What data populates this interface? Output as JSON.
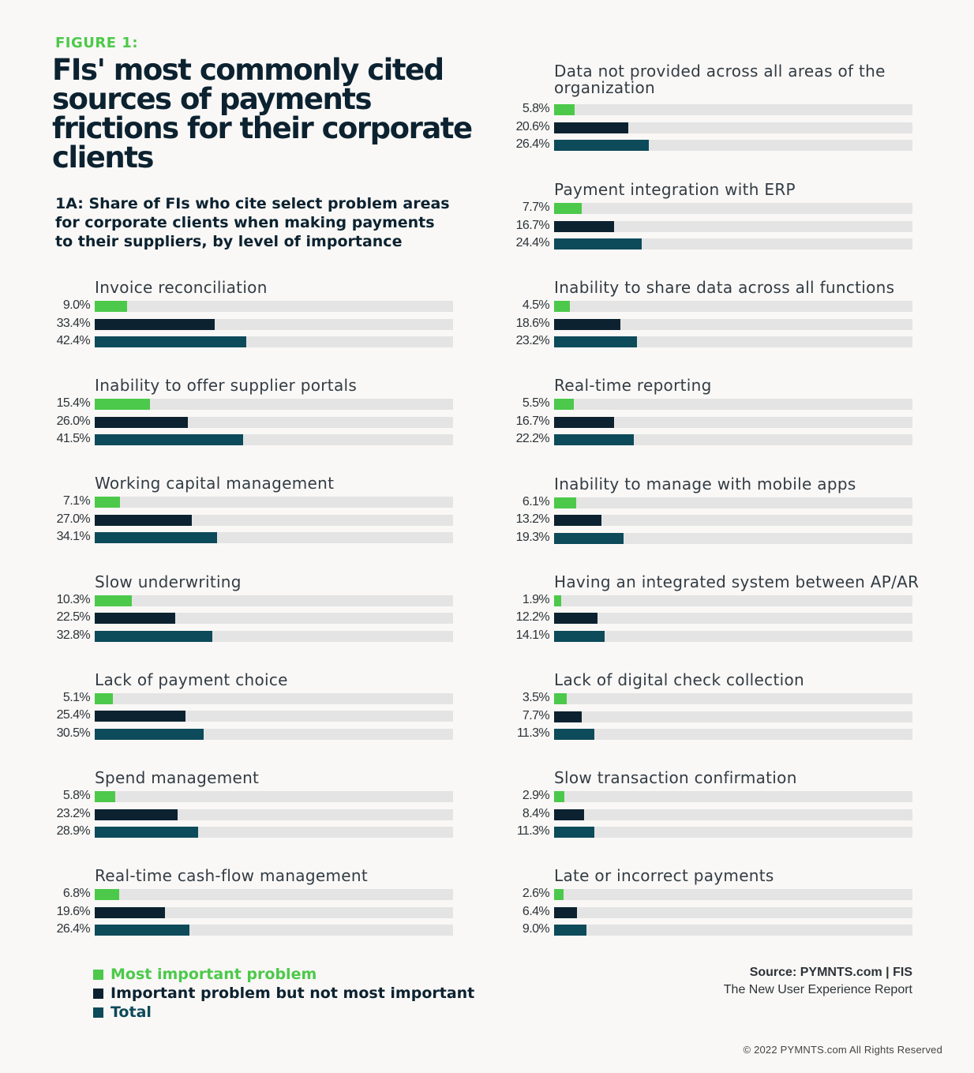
{
  "figure_label": "FIGURE 1:",
  "title": "FIs' most commonly cited sources of payments frictions for their corporate clients",
  "subtitle": "1A: Share of FIs who cite select problem areas for corporate clients when making payments to their suppliers, by level of importance",
  "colors": {
    "most_important": "#4cc94a",
    "important": "#0c2230",
    "total": "#0d4a5a",
    "track": "#e4e4e4"
  },
  "chart_data": {
    "type": "bar",
    "orientation": "horizontal",
    "xlim": [
      0,
      100
    ],
    "series": [
      {
        "name": "Most important problem",
        "color": "#4cc94a"
      },
      {
        "name": "Important problem but not most important",
        "color": "#0c2230"
      },
      {
        "name": "Total",
        "color": "#0d4a5a"
      }
    ],
    "categories": [
      {
        "label": "Invoice reconciliation",
        "values": [
          9.0,
          33.4,
          42.4
        ],
        "value_labels": [
          "9.0%",
          "33.4%",
          "42.4%"
        ]
      },
      {
        "label": "Inability to offer supplier portals",
        "values": [
          15.4,
          26.0,
          41.5
        ],
        "value_labels": [
          "15.4%",
          "26.0%",
          "41.5%"
        ]
      },
      {
        "label": "Working capital management",
        "values": [
          7.1,
          27.0,
          34.1
        ],
        "value_labels": [
          "7.1%",
          "27.0%",
          "34.1%"
        ]
      },
      {
        "label": "Slow underwriting",
        "values": [
          10.3,
          22.5,
          32.8
        ],
        "value_labels": [
          "10.3%",
          "22.5%",
          "32.8%"
        ]
      },
      {
        "label": "Lack of payment choice",
        "values": [
          5.1,
          25.4,
          30.5
        ],
        "value_labels": [
          "5.1%",
          "25.4%",
          "30.5%"
        ]
      },
      {
        "label": "Spend management",
        "values": [
          5.8,
          23.2,
          28.9
        ],
        "value_labels": [
          "5.8%",
          "23.2%",
          "28.9%"
        ]
      },
      {
        "label": "Real-time cash-flow management",
        "values": [
          6.8,
          19.6,
          26.4
        ],
        "value_labels": [
          "6.8%",
          "19.6%",
          "26.4%"
        ]
      },
      {
        "label": "Data not provided across all areas of the organization",
        "values": [
          5.8,
          20.6,
          26.4
        ],
        "value_labels": [
          "5.8%",
          "20.6%",
          "26.4%"
        ]
      },
      {
        "label": "Payment integration with ERP",
        "values": [
          7.7,
          16.7,
          24.4
        ],
        "value_labels": [
          "7.7%",
          "16.7%",
          "24.4%"
        ]
      },
      {
        "label": "Inability to share data across all functions",
        "values": [
          4.5,
          18.6,
          23.2
        ],
        "value_labels": [
          "4.5%",
          "18.6%",
          "23.2%"
        ]
      },
      {
        "label": "Real-time reporting",
        "values": [
          5.5,
          16.7,
          22.2
        ],
        "value_labels": [
          "5.5%",
          "16.7%",
          "22.2%"
        ]
      },
      {
        "label": "Inability to manage with mobile apps",
        "values": [
          6.1,
          13.2,
          19.3
        ],
        "value_labels": [
          "6.1%",
          "13.2%",
          "19.3%"
        ]
      },
      {
        "label": "Having an integrated system between AP/AR",
        "values": [
          1.9,
          12.2,
          14.1
        ],
        "value_labels": [
          "1.9%",
          "12.2%",
          "14.1%"
        ]
      },
      {
        "label": "Lack of digital check collection",
        "values": [
          3.5,
          7.7,
          11.3
        ],
        "value_labels": [
          "3.5%",
          "7.7%",
          "11.3%"
        ]
      },
      {
        "label": "Slow transaction confirmation",
        "values": [
          2.9,
          8.4,
          11.3
        ],
        "value_labels": [
          "2.9%",
          "8.4%",
          "11.3%"
        ]
      },
      {
        "label": "Late or incorrect payments",
        "values": [
          2.6,
          6.4,
          9.0
        ],
        "value_labels": [
          "2.6%",
          "6.4%",
          "9.0%"
        ]
      }
    ],
    "legend": [
      "Most important problem",
      "Important problem but not most important",
      "Total"
    ],
    "legend_position": "bottom-left"
  },
  "source": {
    "line1": "Source: PYMNTS.com  |  FIS",
    "line2": "The New User Experience Report"
  },
  "copyright": "© 2022 PYMNTS.com All Rights Reserved"
}
